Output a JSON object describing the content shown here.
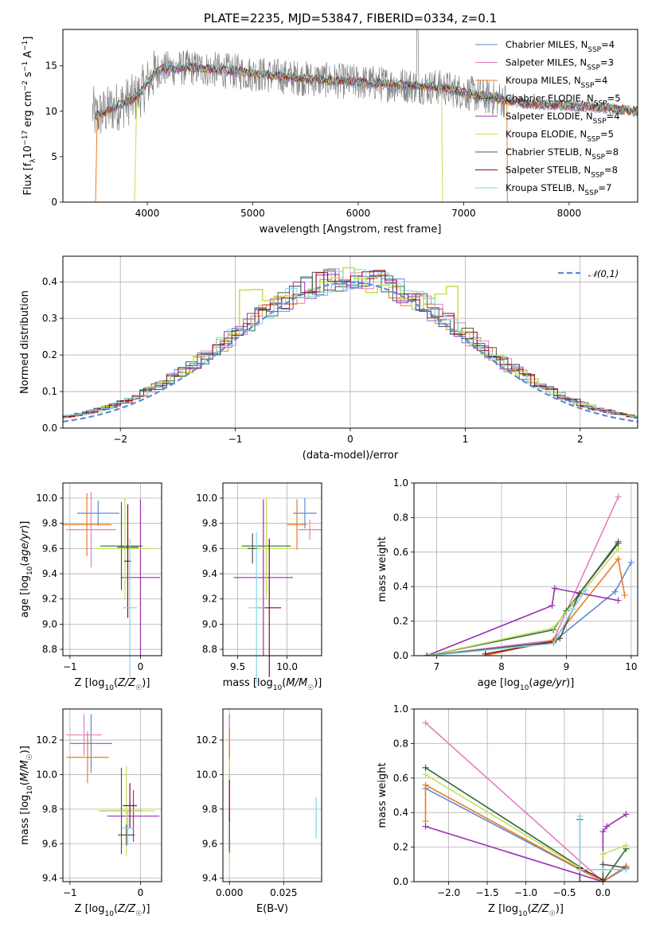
{
  "figure": {
    "title": "PLATE=2235, MJD=53847, FIBERID=0334, z=0.1"
  },
  "colors": {
    "chabrier_miles": "#5b8bd8",
    "salpeter_miles": "#e57fbf",
    "kroupa_miles": "#e87c24",
    "chabrier_elodie": "#2f6b3a",
    "salpeter_elodie": "#9a2fb4",
    "kroupa_elodie": "#c9df56",
    "chabrier_stelib": "#555555",
    "salpeter_stelib": "#8b1010",
    "kroupa_stelib": "#7fd7e3",
    "data_gray": "#808080",
    "grid": "#b0b0b0"
  },
  "chart_data": [
    {
      "id": "spectrum",
      "type": "line",
      "xlabel": "wavelength [Angstrom, rest frame]",
      "ylabel": "Flux [f_λ10^-17 erg cm^-2 s^-1 A^-1]",
      "xlim": [
        3200,
        8650
      ],
      "ylim": [
        0,
        19
      ],
      "xticks": [
        4000,
        5000,
        6000,
        7000,
        8000
      ],
      "yticks": [
        0,
        5,
        10,
        15
      ],
      "grid": false,
      "legend_position": "right",
      "legend": [
        {
          "label": "Chabrier MILES, N",
          "sub": "SSP",
          "count": "=4",
          "color": "#5b8bd8"
        },
        {
          "label": "Salpeter MILES, N",
          "sub": "SSP",
          "count": "=3",
          "color": "#e57fbf"
        },
        {
          "label": "Kroupa MILES, N",
          "sub": "SSP",
          "count": "=4",
          "color": "#e87c24"
        },
        {
          "label": "Chabrier ELODIE, N",
          "sub": "SSP",
          "count": "=5",
          "color": "#2f6b3a"
        },
        {
          "label": "Salpeter ELODIE, N",
          "sub": "SSP",
          "count": "=4",
          "color": "#9a2fb4"
        },
        {
          "label": "Kroupa ELODIE, N",
          "sub": "SSP",
          "count": "=5",
          "color": "#c9df56"
        },
        {
          "label": "Chabrier STELIB, N",
          "sub": "SSP",
          "count": "=8",
          "color": "#555555"
        },
        {
          "label": "Salpeter STELIB, N",
          "sub": "SSP",
          "count": "=8",
          "color": "#8b1010"
        },
        {
          "label": "Kroupa STELIB, N",
          "sub": "SSP",
          "count": "=7",
          "color": "#7fd7e3"
        }
      ],
      "continuum": [
        [
          3500,
          9.4
        ],
        [
          3700,
          10.5
        ],
        [
          3900,
          11.5
        ],
        [
          4100,
          14.6
        ],
        [
          4400,
          14.8
        ],
        [
          4800,
          14.4
        ],
        [
          5200,
          13.9
        ],
        [
          5600,
          13.5
        ],
        [
          6000,
          13.2
        ],
        [
          6400,
          12.9
        ],
        [
          6800,
          12.6
        ],
        [
          7200,
          11.6
        ],
        [
          7600,
          10.8
        ],
        [
          8000,
          10.6
        ],
        [
          8300,
          10.4
        ],
        [
          8650,
          10.0
        ]
      ]
    },
    {
      "id": "residuals",
      "type": "histogram",
      "xlabel": "(data-model)/error",
      "ylabel": "Normed distribution",
      "xlim": [
        -2.5,
        2.5
      ],
      "ylim": [
        0,
        0.47
      ],
      "xticks": [
        -2,
        -1,
        0,
        1,
        2
      ],
      "yticks": [
        0.0,
        0.1,
        0.2,
        0.3,
        0.4
      ],
      "grid": true,
      "legend_position": "upper right",
      "legend": [
        {
          "label": "𝒩(0,1)",
          "color": "#5b8bd8",
          "style": "dashed"
        }
      ],
      "gaussian": {
        "mu": 0.0,
        "sigma": 1.0
      }
    },
    {
      "id": "age-vs-Z",
      "type": "errorbar",
      "xlabel": "Z [log10(Z/Z☉)]",
      "ylabel": "age  [log10(age/yr)]",
      "xlim": [
        -1.1,
        0.3
      ],
      "ylim": [
        8.75,
        10.12
      ],
      "xticks": [
        -1,
        0
      ],
      "yticks": [
        8.8,
        9.0,
        9.2,
        9.4,
        9.6,
        9.8,
        10.0
      ],
      "grid": true,
      "points": [
        {
          "series": "Chabrier MILES",
          "x": -0.6,
          "xerr": 0.3,
          "y": 9.88,
          "yerr": 0.1,
          "color": "#5b8bd8"
        },
        {
          "series": "Salpeter MILES",
          "x": -0.7,
          "xerr": 0.35,
          "y": 9.75,
          "yerr": 0.3,
          "color": "#e57fbf"
        },
        {
          "series": "Kroupa MILES",
          "x": -0.76,
          "xerr": 0.35,
          "y": 9.79,
          "yerr": 0.25,
          "color": "#e87c24"
        },
        {
          "series": "Chabrier ELODIE",
          "x": -0.27,
          "xerr": 0.3,
          "y": 9.62,
          "yerr": 0.35,
          "color": "#2f6b3a"
        },
        {
          "series": "Salpeter ELODIE",
          "x": 0.0,
          "xerr": 0.28,
          "y": 9.37,
          "yerr": 0.62,
          "color": "#9a2fb4"
        },
        {
          "series": "Kroupa ELODIE",
          "x": -0.22,
          "xerr": 0.42,
          "y": 9.6,
          "yerr": 0.4,
          "color": "#c9df56"
        },
        {
          "series": "Chabrier STELIB",
          "x": -0.18,
          "xerr": 0.15,
          "y": 9.61,
          "yerr": 0.12,
          "color": "#555555"
        },
        {
          "series": "Salpeter STELIB",
          "x": -0.18,
          "xerr": 0.05,
          "y": 9.5,
          "yerr": 0.45,
          "color": "#8b1010"
        },
        {
          "series": "Kroupa STELIB",
          "x": -0.15,
          "xerr": 0.1,
          "y": 9.13,
          "yerr": 0.55,
          "color": "#7fd7e3"
        }
      ]
    },
    {
      "id": "age-vs-mass",
      "type": "errorbar",
      "xlabel": "mass [log10(M/M☉)]",
      "ylabel": "",
      "xlim": [
        9.35,
        10.35
      ],
      "ylim": [
        8.75,
        10.12
      ],
      "xticks": [
        9.5,
        10.0
      ],
      "yticks": [
        8.8,
        9.0,
        9.2,
        9.4,
        9.6,
        9.8,
        10.0
      ],
      "grid": true,
      "points": [
        {
          "series": "Chabrier MILES",
          "x": 10.18,
          "xerr": 0.12,
          "y": 9.88,
          "yerr": 0.12,
          "color": "#5b8bd8"
        },
        {
          "series": "Salpeter MILES",
          "x": 10.23,
          "xerr": 0.12,
          "y": 9.75,
          "yerr": 0.08,
          "color": "#e57fbf"
        },
        {
          "series": "Kroupa MILES",
          "x": 10.1,
          "xerr": 0.1,
          "y": 9.79,
          "yerr": 0.2,
          "color": "#e87c24"
        },
        {
          "series": "Chabrier ELODIE",
          "x": 9.79,
          "xerr": 0.25,
          "y": 9.62,
          "yerr": 0.35,
          "color": "#2f6b3a"
        },
        {
          "series": "Salpeter ELODIE",
          "x": 9.76,
          "xerr": 0.3,
          "y": 9.37,
          "yerr": 0.62,
          "color": "#9a2fb4"
        },
        {
          "series": "Kroupa ELODIE",
          "x": 9.79,
          "xerr": 0.28,
          "y": 9.6,
          "yerr": 0.4,
          "color": "#c9df56"
        },
        {
          "series": "Chabrier STELIB",
          "x": 9.65,
          "xerr": 0.05,
          "y": 9.6,
          "yerr": 0.12,
          "color": "#555555"
        },
        {
          "series": "Salpeter STELIB",
          "x": 9.82,
          "xerr": 0.12,
          "y": 9.13,
          "yerr": 0.55,
          "color": "#8b1010"
        },
        {
          "series": "Kroupa STELIB",
          "x": 9.69,
          "xerr": 0.08,
          "y": 9.13,
          "yerr": 0.6,
          "color": "#7fd7e3"
        }
      ]
    },
    {
      "id": "weight-vs-age",
      "type": "line",
      "xlabel": "age  [log10(age/yr)]",
      "ylabel": "mass weight",
      "xlim": [
        6.65,
        10.1
      ],
      "ylim": [
        0,
        1.0
      ],
      "xticks": [
        7,
        8,
        9,
        10
      ],
      "yticks": [
        0.0,
        0.2,
        0.4,
        0.6,
        0.8,
        1.0
      ],
      "grid": true,
      "series": [
        {
          "name": "Chabrier MILES",
          "color": "#5b8bd8",
          "points": [
            [
              6.85,
              0.0
            ],
            [
              8.8,
              0.08
            ],
            [
              9.75,
              0.37
            ],
            [
              10.0,
              0.54
            ]
          ]
        },
        {
          "name": "Salpeter MILES",
          "color": "#e57fbf",
          "points": [
            [
              6.85,
              0.0
            ],
            [
              8.8,
              0.09
            ],
            [
              9.8,
              0.92
            ]
          ]
        },
        {
          "name": "Kroupa MILES",
          "color": "#e87c24",
          "points": [
            [
              7.75,
              0.0
            ],
            [
              8.8,
              0.09
            ],
            [
              9.8,
              0.56
            ],
            [
              9.9,
              0.35
            ]
          ]
        },
        {
          "name": "Chabrier ELODIE",
          "color": "#2f6b3a",
          "points": [
            [
              6.85,
              0.0
            ],
            [
              8.8,
              0.15
            ],
            [
              9.0,
              0.26
            ],
            [
              9.8,
              0.66
            ]
          ]
        },
        {
          "name": "Salpeter ELODIE",
          "color": "#9a2fb4",
          "points": [
            [
              6.85,
              0.0
            ],
            [
              8.78,
              0.29
            ],
            [
              8.82,
              0.39
            ],
            [
              9.8,
              0.32
            ]
          ]
        },
        {
          "name": "Kroupa ELODIE",
          "color": "#c9df56",
          "points": [
            [
              6.85,
              0.0
            ],
            [
              8.8,
              0.16
            ],
            [
              9.1,
              0.3
            ],
            [
              9.8,
              0.62
            ]
          ]
        },
        {
          "name": "Chabrier STELIB",
          "color": "#555555",
          "points": [
            [
              6.85,
              0.0
            ],
            [
              8.8,
              0.08
            ],
            [
              8.9,
              0.1
            ],
            [
              9.2,
              0.36
            ],
            [
              9.8,
              0.65
            ]
          ]
        },
        {
          "name": "Salpeter STELIB",
          "color": "#8b1010",
          "points": [
            [
              7.75,
              0.01
            ],
            [
              8.8,
              0.08
            ]
          ]
        },
        {
          "name": "Kroupa STELIB",
          "color": "#7fd7e3",
          "points": [
            [
              6.9,
              0.0
            ],
            [
              8.8,
              0.07
            ],
            [
              9.1,
              0.27
            ],
            [
              9.3,
              0.38
            ]
          ]
        }
      ]
    },
    {
      "id": "mass-vs-Z",
      "type": "errorbar",
      "xlabel": "Z [log10(Z/Z☉)]",
      "ylabel": "mass [log10(M/M☉)]",
      "xlim": [
        -1.1,
        0.3
      ],
      "ylim": [
        9.38,
        10.38
      ],
      "xticks": [
        -1,
        0
      ],
      "yticks": [
        9.4,
        9.6,
        9.8,
        10.0,
        10.2
      ],
      "grid": true,
      "points": [
        {
          "series": "Chabrier MILES",
          "x": -0.7,
          "xerr": 0.3,
          "y": 10.18,
          "yerr": 0.17,
          "color": "#5b8bd8"
        },
        {
          "series": "Salpeter MILES",
          "x": -0.8,
          "xerr": 0.25,
          "y": 10.23,
          "yerr": 0.12,
          "color": "#e57fbf"
        },
        {
          "series": "Kroupa MILES",
          "x": -0.75,
          "xerr": 0.3,
          "y": 10.1,
          "yerr": 0.15,
          "color": "#e87c24"
        },
        {
          "series": "Chabrier ELODIE",
          "x": -0.27,
          "xerr": 0.3,
          "y": 9.79,
          "yerr": 0.25,
          "color": "#2f6b3a"
        },
        {
          "series": "Salpeter ELODIE",
          "x": -0.1,
          "xerr": 0.37,
          "y": 9.76,
          "yerr": 0.15,
          "color": "#9a2fb4"
        },
        {
          "series": "Kroupa ELODIE",
          "x": -0.2,
          "xerr": 0.4,
          "y": 9.79,
          "yerr": 0.26,
          "color": "#c9df56"
        },
        {
          "series": "Chabrier STELIB",
          "x": -0.2,
          "xerr": 0.12,
          "y": 9.65,
          "yerr": 0.06,
          "color": "#555555"
        },
        {
          "series": "Salpeter STELIB",
          "x": -0.15,
          "xerr": 0.1,
          "y": 9.82,
          "yerr": 0.13,
          "color": "#8b1010"
        },
        {
          "series": "Kroupa STELIB",
          "x": -0.18,
          "xerr": 0.08,
          "y": 9.69,
          "yerr": 0.1,
          "color": "#7fd7e3"
        }
      ]
    },
    {
      "id": "mass-vs-EBV",
      "type": "errorbar",
      "xlabel": "E(B-V)",
      "ylabel": "",
      "xlim": [
        -0.003,
        0.0425
      ],
      "ylim": [
        9.38,
        10.38
      ],
      "xticks": [
        0.0,
        0.025
      ],
      "yticks": [
        9.4,
        9.6,
        9.8,
        10.0,
        10.2
      ],
      "grid": true,
      "points": [
        {
          "series": "Chabrier MILES",
          "x": 0.0,
          "xerr": 0.0,
          "y": 10.18,
          "yerr": 0.17,
          "color": "#5b8bd8"
        },
        {
          "series": "Salpeter MILES",
          "x": 0.0,
          "xerr": 0.0,
          "y": 10.23,
          "yerr": 0.12,
          "color": "#e57fbf"
        },
        {
          "series": "Kroupa MILES",
          "x": 0.0,
          "xerr": 0.0,
          "y": 10.1,
          "yerr": 0.17,
          "color": "#e87c24"
        },
        {
          "series": "Chabrier ELODIE",
          "x": 0.0,
          "xerr": 0.0,
          "y": 9.79,
          "yerr": 0.25,
          "color": "#2f6b3a"
        },
        {
          "series": "Salpeter ELODIE",
          "x": 0.0,
          "xerr": 0.0,
          "y": 9.76,
          "yerr": 0.15,
          "color": "#9a2fb4"
        },
        {
          "series": "Kroupa ELODIE",
          "x": 0.0,
          "xerr": 0.0,
          "y": 9.79,
          "yerr": 0.3,
          "color": "#c9df56"
        },
        {
          "series": "Chabrier STELIB",
          "x": 0.0,
          "xerr": 0.0,
          "y": 9.65,
          "yerr": 0.1,
          "color": "#555555"
        },
        {
          "series": "Salpeter STELIB",
          "x": 0.0,
          "xerr": 0.0,
          "y": 9.85,
          "yerr": 0.12,
          "color": "#8b1010"
        },
        {
          "series": "Kroupa STELIB",
          "x": 0.04,
          "xerr": 0.0,
          "y": 9.75,
          "yerr": 0.12,
          "color": "#7fd7e3"
        }
      ]
    },
    {
      "id": "weight-vs-Z",
      "type": "line",
      "xlabel": "Z [log10(Z/Z☉)]",
      "ylabel": "mass weight",
      "xlim": [
        -2.45,
        0.45
      ],
      "ylim": [
        0,
        1.0
      ],
      "xticks": [
        -2.0,
        -1.5,
        -1.0,
        -0.5,
        0.0
      ],
      "yticks": [
        0.0,
        0.2,
        0.4,
        0.6,
        0.8,
        1.0
      ],
      "grid": true,
      "series": [
        {
          "name": "Chabrier MILES",
          "color": "#5b8bd8",
          "points": [
            [
              -2.3,
              0.54
            ],
            [
              0.0,
              0.0
            ],
            [
              0.3,
              0.08
            ]
          ]
        },
        {
          "name": "Salpeter MILES",
          "color": "#e57fbf",
          "points": [
            [
              -2.3,
              0.92
            ],
            [
              0.0,
              0.0
            ],
            [
              0.3,
              0.09
            ]
          ]
        },
        {
          "name": "Kroupa MILES",
          "color": "#e87c24",
          "points": [
            [
              -2.3,
              0.35
            ],
            [
              -2.3,
              0.56
            ],
            [
              0.0,
              0.0
            ],
            [
              0.3,
              0.09
            ]
          ]
        },
        {
          "name": "Chabrier ELODIE",
          "color": "#2f6b3a",
          "points": [
            [
              -2.3,
              0.66
            ],
            [
              0.0,
              0.0
            ],
            [
              0.3,
              0.19
            ]
          ]
        },
        {
          "name": "Salpeter ELODIE",
          "color": "#9a2fb4",
          "points": [
            [
              -2.3,
              0.32
            ],
            [
              0.0,
              0.0
            ],
            [
              0.0,
              0.29
            ],
            [
              0.05,
              0.32
            ],
            [
              0.3,
              0.39
            ]
          ]
        },
        {
          "name": "Kroupa ELODIE",
          "color": "#c9df56",
          "points": [
            [
              -2.3,
              0.62
            ],
            [
              0.0,
              0.0
            ],
            [
              0.0,
              0.16
            ],
            [
              0.3,
              0.21
            ]
          ]
        },
        {
          "name": "Chabrier STELIB",
          "color": "#555555",
          "points": [
            [
              -0.3,
              0.36
            ],
            [
              -0.3,
              0.0
            ],
            [
              0.0,
              0.0
            ],
            [
              0.0,
              0.1
            ],
            [
              0.3,
              0.08
            ]
          ]
        },
        {
          "name": "Salpeter STELIB",
          "color": "#8b1010",
          "points": [
            [
              -0.3,
              0.08
            ],
            [
              0.0,
              0.01
            ]
          ]
        },
        {
          "name": "Kroupa STELIB",
          "color": "#7fd7e3",
          "points": [
            [
              -0.3,
              0.38
            ],
            [
              -0.3,
              0.07
            ],
            [
              0.0,
              0.07
            ],
            [
              0.3,
              0.07
            ]
          ]
        }
      ]
    }
  ]
}
